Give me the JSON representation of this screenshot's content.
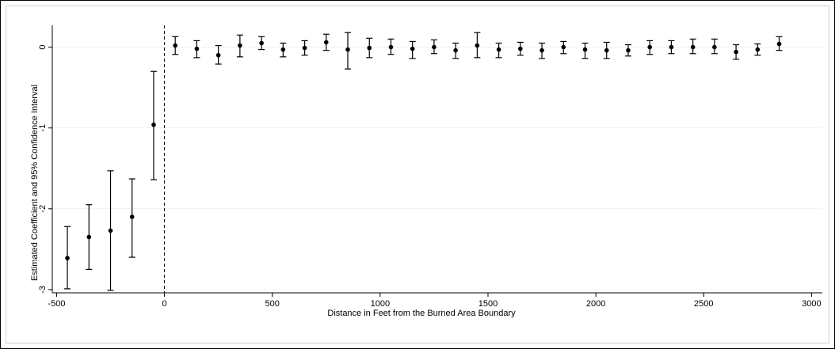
{
  "chart_data": {
    "type": "scatter",
    "title": "",
    "xlabel": "Distance in Feet from the Burned Area Boundary",
    "ylabel": "Estimated Coefficient and 95% Confidence Interval",
    "xlim": [
      -520,
      3050
    ],
    "ylim": [
      -3.04,
      0.27
    ],
    "xticks": [
      -500,
      0,
      500,
      1000,
      1500,
      2000,
      2500,
      3000
    ],
    "yticks": [
      -3,
      -2,
      -1,
      0
    ],
    "xtick_labels": [
      "-500",
      "0",
      "500",
      "1000",
      "1500",
      "2000",
      "2500",
      "3000"
    ],
    "ytick_labels": [
      "-3",
      "-2",
      "-1",
      "0"
    ],
    "grid": true,
    "reference_line_x": 0,
    "series": [
      {
        "x": [
          -450,
          -350,
          -250,
          -150,
          -50,
          50,
          150,
          250,
          350,
          450,
          550,
          650,
          750,
          850,
          950,
          1050,
          1150,
          1250,
          1350,
          1450,
          1550,
          1650,
          1750,
          1850,
          1950,
          2050,
          2150,
          2250,
          2350,
          2450,
          2550,
          2650,
          2750,
          2850
        ],
        "y": [
          -2.61,
          -2.35,
          -2.27,
          -2.1,
          -0.96,
          0.02,
          -0.02,
          -0.1,
          0.02,
          0.05,
          -0.03,
          -0.01,
          0.06,
          -0.03,
          -0.01,
          0.0,
          -0.02,
          0.0,
          -0.04,
          0.02,
          -0.03,
          -0.02,
          -0.04,
          0.0,
          -0.03,
          -0.04,
          -0.04,
          0.0,
          0.0,
          0.0,
          0.0,
          -0.06,
          -0.03,
          0.04
        ],
        "lower": [
          -2.99,
          -2.75,
          -3.01,
          -2.6,
          -1.64,
          -0.09,
          -0.13,
          -0.21,
          -0.12,
          -0.03,
          -0.12,
          -0.1,
          -0.04,
          -0.27,
          -0.13,
          -0.09,
          -0.14,
          -0.08,
          -0.14,
          -0.13,
          -0.13,
          -0.1,
          -0.14,
          -0.08,
          -0.14,
          -0.14,
          -0.11,
          -0.09,
          -0.08,
          -0.08,
          -0.08,
          -0.15,
          -0.1,
          -0.04
        ],
        "upper": [
          -2.22,
          -1.95,
          -1.53,
          -1.63,
          -0.3,
          0.13,
          0.08,
          0.02,
          0.15,
          0.13,
          0.05,
          0.08,
          0.16,
          0.18,
          0.11,
          0.1,
          0.07,
          0.09,
          0.05,
          0.18,
          0.05,
          0.06,
          0.05,
          0.07,
          0.05,
          0.06,
          0.03,
          0.08,
          0.08,
          0.1,
          0.1,
          0.03,
          0.04,
          0.13
        ]
      }
    ]
  },
  "colors": {
    "marker": "#000000",
    "grid": "#eaf2f3",
    "frame": "#c9d6e0"
  }
}
